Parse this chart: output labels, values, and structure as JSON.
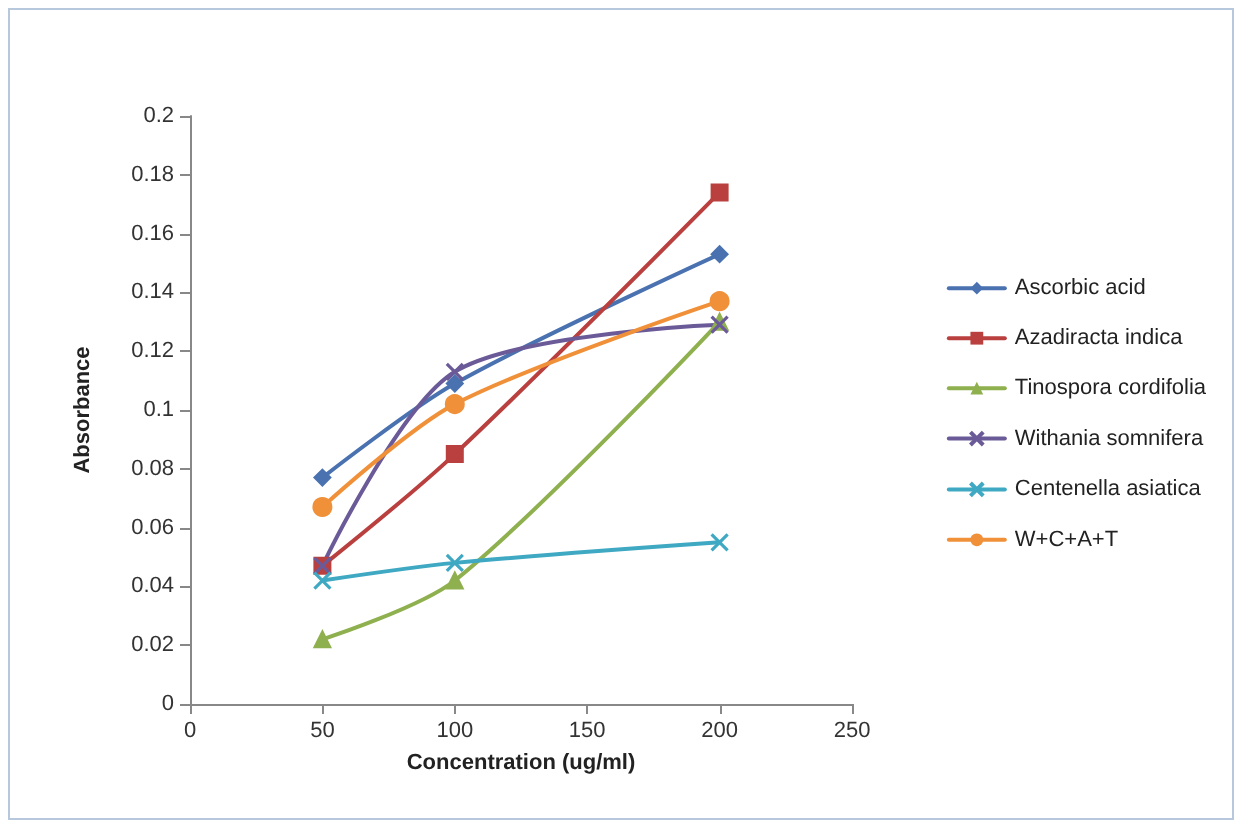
{
  "chart_data": {
    "type": "line",
    "xlabel": "Concentration (ug/ml)",
    "ylabel": "Absorbance",
    "x": [
      50,
      100,
      200
    ],
    "series": [
      {
        "name": "Ascorbic acid",
        "color": "#4a72b0",
        "marker": "diamond",
        "values": [
          0.077,
          0.109,
          0.153
        ]
      },
      {
        "name": "Azadiracta indica",
        "color": "#b9403e",
        "marker": "square",
        "values": [
          0.047,
          0.085,
          0.174
        ]
      },
      {
        "name": "Tinospora cordifolia",
        "color": "#8fb04e",
        "marker": "triangle",
        "values": [
          0.022,
          0.042,
          0.13
        ]
      },
      {
        "name": "Withania somnifera",
        "color": "#6b5a98",
        "marker": "cross",
        "values": [
          0.047,
          0.113,
          0.129
        ]
      },
      {
        "name": "Centenella asiatica",
        "color": "#3fa8c2",
        "marker": "cross",
        "values": [
          0.042,
          0.048,
          0.055
        ]
      },
      {
        "name": "W+C+A+T",
        "color": "#f0913a",
        "marker": "circle",
        "values": [
          0.067,
          0.102,
          0.137
        ]
      }
    ],
    "xlim": [
      0,
      250
    ],
    "xticks": [
      0,
      50,
      100,
      150,
      200,
      250
    ],
    "ylim": [
      0,
      0.2
    ],
    "yticks": [
      0,
      0.02,
      0.04,
      0.06,
      0.08,
      0.1,
      0.12,
      0.14,
      0.16,
      0.18,
      0.2
    ],
    "grid": false,
    "legend": "right",
    "line_style": "solid"
  }
}
